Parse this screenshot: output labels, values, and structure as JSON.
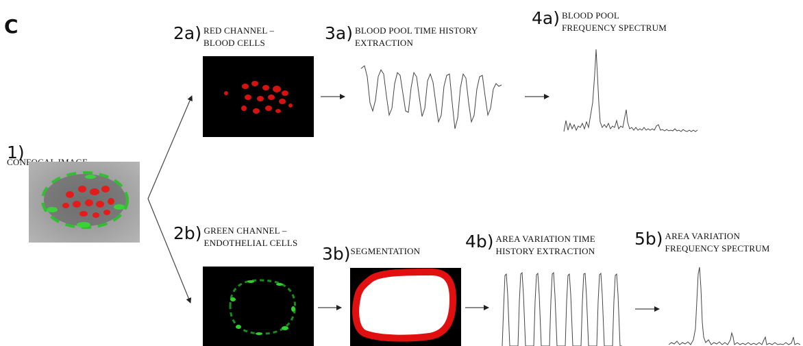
{
  "panel_letter": "C",
  "steps": {
    "s1": {
      "num": "1)",
      "title": [
        "CONFOCAL IMAGE"
      ]
    },
    "s2a": {
      "num": "2a)",
      "title": [
        "RED CHANNEL –",
        "BLOOD CELLS"
      ]
    },
    "s3a": {
      "num": "3a)",
      "title": [
        "BLOOD POOL  TIME HISTORY",
        "EXTRACTION"
      ]
    },
    "s4a": {
      "num": "4a)",
      "title": [
        "BLOOD POOL",
        "FREQUENCY SPECTRUM"
      ]
    },
    "s2b": {
      "num": "2b)",
      "title": [
        "GREEN CHANNEL –",
        "ENDOTHELIAL CELLS"
      ]
    },
    "s3b": {
      "num": "3b)",
      "title": [
        "SEGMENTATION"
      ]
    },
    "s4b": {
      "num": "4b)",
      "title": [
        "AREA VARIATION TIME",
        "HISTORY EXTRACTION"
      ]
    },
    "s5b": {
      "num": "5b)",
      "title": [
        "AREA VARIATION",
        "FREQUENCY SPECTRUM"
      ]
    }
  },
  "colors": {
    "red_channel": "#e8141a",
    "green_channel": "#22c322",
    "segmentation_border": "#e01010",
    "image_background": "#000000",
    "trace": "#333333"
  }
}
